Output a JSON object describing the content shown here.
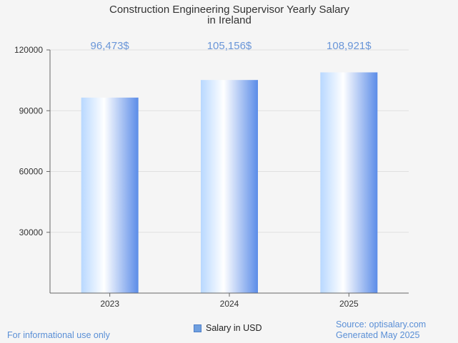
{
  "chart_data": {
    "type": "bar",
    "title": "Construction Engineering Supervisor Yearly Salary",
    "subtitle": "in Ireland",
    "categories": [
      "2023",
      "2024",
      "2025"
    ],
    "series": [
      {
        "name": "Salary in USD",
        "values": [
          96473,
          105156,
          108921
        ]
      }
    ],
    "value_labels": [
      "96,473$",
      "105,156$",
      "108,921$"
    ],
    "y_ticks": [
      30000,
      60000,
      90000,
      120000
    ],
    "ylim": [
      0,
      120000
    ],
    "grid": true,
    "legend_position": "bottom-center"
  },
  "colors": {
    "bar_gradient": [
      "#b8d8ff",
      "#ffffff",
      "#5b8ce8"
    ],
    "value_label": "#6a96d8",
    "footer_text": "#5a8fd6",
    "grid": "#e0e0e0",
    "axis": "#666666"
  },
  "footer": {
    "disclaimer": "For informational use only",
    "source": "Source: optisalary.com",
    "generated": "Generated May 2025"
  },
  "legend": {
    "label": "Salary in USD"
  }
}
